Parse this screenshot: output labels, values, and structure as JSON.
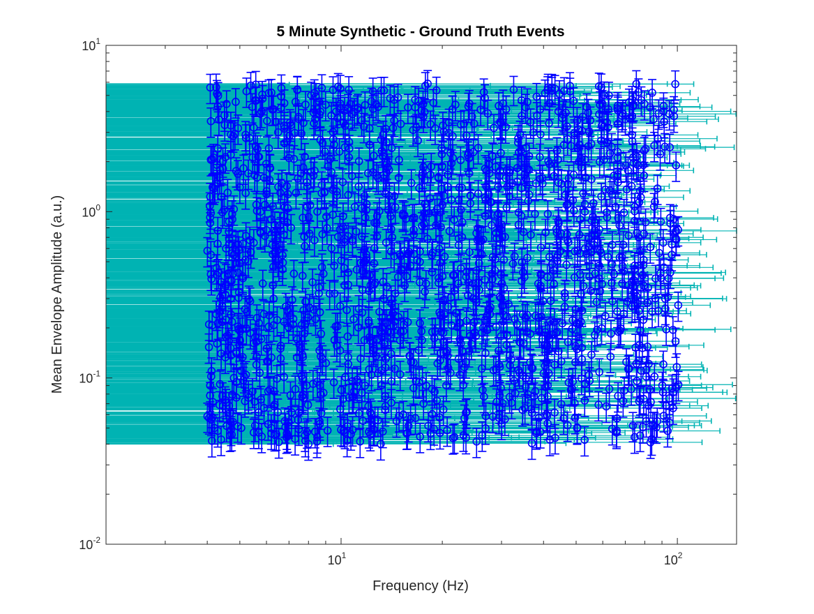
{
  "chart_data": {
    "type": "scatter",
    "subtype": "errorbar",
    "title": "5 Minute Synthetic - Ground Truth Events",
    "xlabel": "Frequency (Hz)",
    "ylabel": "Mean Envelope Amplitude (a.u.)",
    "xscale": "log",
    "yscale": "log",
    "xlim": [
      2,
      150
    ],
    "ylim": [
      0.01,
      10
    ],
    "x_tick_labels": [
      {
        "base": "10",
        "exp": "1",
        "value": 10
      },
      {
        "base": "10",
        "exp": "2",
        "value": 100
      }
    ],
    "y_tick_labels": [
      {
        "base": "10",
        "exp": "-2",
        "value": 0.01
      },
      {
        "base": "10",
        "exp": "-1",
        "value": 0.1
      },
      {
        "base": "10",
        "exp": "0",
        "value": 1
      },
      {
        "base": "10",
        "exp": "1",
        "value": 10
      }
    ],
    "grid": false,
    "legend": "none",
    "colors": {
      "marker": "#0000ff",
      "xerror": "#00b3b3",
      "axes": "#262626"
    },
    "data_summary": {
      "n_events_approx": 1500,
      "x_range": [
        4.0,
        101.0
      ],
      "y_range": [
        0.04,
        6.0
      ],
      "marker": "open circle",
      "vertical_error_fraction": 0.2,
      "horizontal_error_extends_to_left_edge": true,
      "horizontal_error_right_factor": [
        1.0,
        1.6
      ]
    },
    "series": [
      {
        "points": [
          [
            4.1,
            3.5
          ],
          [
            4.1,
            2.05
          ],
          [
            4.15,
            1.4
          ],
          [
            4.1,
            0.98
          ],
          [
            4.1,
            0.55
          ],
          [
            4.1,
            0.42
          ],
          [
            4.05,
            0.21
          ],
          [
            4.12,
            0.11
          ],
          [
            4.08,
            0.09
          ],
          [
            4.15,
            0.058
          ],
          [
            4.2,
            0.05
          ],
          [
            4.3,
            4.3
          ],
          [
            4.3,
            2.4
          ],
          [
            4.35,
            1.6
          ],
          [
            4.3,
            0.77
          ],
          [
            4.35,
            0.28
          ],
          [
            4.4,
            0.14
          ],
          [
            4.3,
            0.048
          ],
          [
            4.5,
            3.8
          ],
          [
            4.6,
            1.3
          ],
          [
            4.55,
            0.6
          ],
          [
            4.5,
            0.41
          ],
          [
            4.6,
            0.18
          ],
          [
            4.55,
            0.071
          ],
          [
            4.7,
            3.3
          ],
          [
            4.7,
            2.2
          ],
          [
            4.75,
            0.9
          ],
          [
            4.8,
            0.55
          ],
          [
            4.7,
            0.3
          ],
          [
            4.8,
            0.1
          ],
          [
            5.0,
            1.4
          ],
          [
            5.0,
            0.49
          ],
          [
            5.0,
            0.17
          ],
          [
            5.05,
            0.05
          ],
          [
            5.2,
            2.9
          ],
          [
            5.3,
            1.7
          ],
          [
            5.25,
            0.25
          ],
          [
            5.3,
            0.08
          ],
          [
            5.5,
            3.2
          ],
          [
            5.6,
            1.1
          ],
          [
            5.5,
            0.65
          ],
          [
            5.6,
            0.12
          ],
          [
            5.5,
            0.047
          ],
          [
            5.8,
            4.0
          ],
          [
            5.9,
            1.6
          ],
          [
            5.85,
            0.37
          ],
          [
            5.9,
            0.066
          ],
          [
            6.1,
            2.4
          ],
          [
            6.2,
            0.9
          ],
          [
            6.3,
            0.3
          ],
          [
            6.2,
            0.05
          ],
          [
            6.5,
            3.0
          ],
          [
            6.6,
            1.3
          ],
          [
            6.7,
            0.45
          ],
          [
            6.6,
            0.15
          ],
          [
            6.8,
            0.055
          ],
          [
            7.0,
            2.1
          ],
          [
            7.1,
            0.8
          ],
          [
            7.2,
            0.21
          ],
          [
            7.3,
            0.043
          ],
          [
            7.6,
            1.7
          ],
          [
            7.8,
            0.62
          ],
          [
            7.9,
            0.09
          ],
          [
            8.0,
            0.04
          ],
          [
            8.3,
            3.4
          ],
          [
            8.5,
            1.0
          ],
          [
            8.6,
            0.35
          ],
          [
            8.8,
            0.13
          ]
        ]
      }
    ]
  }
}
